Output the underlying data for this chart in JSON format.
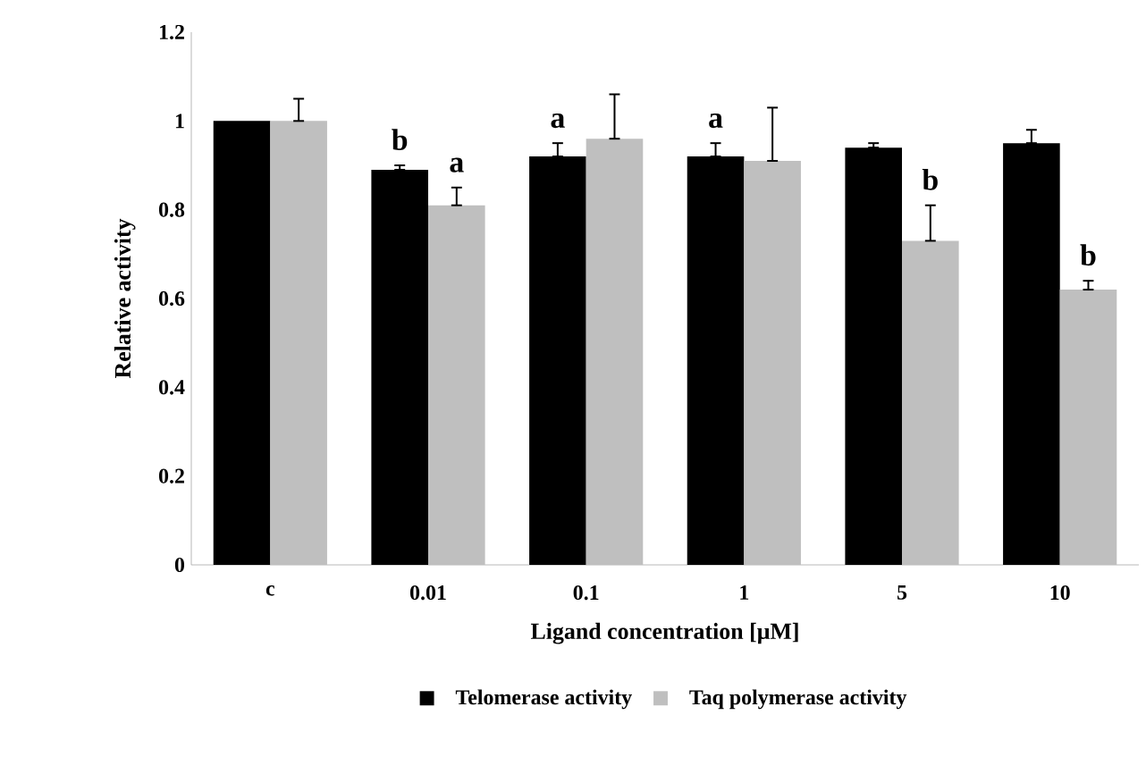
{
  "chart_data": {
    "type": "bar",
    "xlabel": "Ligand concentration [μM]",
    "ylabel": "Relative activity",
    "categories": [
      "c",
      "0.01",
      "0.1",
      "1",
      "5",
      "10"
    ],
    "series": [
      {
        "name": "Telomerase activity",
        "color": "#000000",
        "values": [
          1.0,
          0.89,
          0.92,
          0.92,
          0.94,
          0.95
        ],
        "errors": [
          null,
          [
            0.89,
            0.9
          ],
          [
            0.92,
            0.95
          ],
          [
            0.92,
            0.95
          ],
          [
            0.94,
            0.95
          ],
          [
            0.95,
            0.98
          ]
        ],
        "value_labels": [
          null,
          "b",
          "a",
          "a",
          null,
          null
        ]
      },
      {
        "name": "Taq polymerase activity",
        "color": "#bfbfbf",
        "values": [
          1.0,
          0.81,
          0.96,
          0.91,
          0.73,
          0.62
        ],
        "errors": [
          [
            1.0,
            1.05
          ],
          [
            0.81,
            0.85
          ],
          [
            0.96,
            1.06
          ],
          [
            0.91,
            1.03
          ],
          [
            0.73,
            0.81
          ],
          [
            0.62,
            0.64
          ]
        ],
        "value_labels": [
          null,
          "a",
          null,
          null,
          "b",
          "b"
        ]
      }
    ],
    "ylim": [
      0,
      1.2
    ],
    "yticks": [
      0,
      0.2,
      0.4,
      0.6,
      0.8,
      1,
      1.2
    ],
    "grid": false,
    "legend": "bottom"
  }
}
